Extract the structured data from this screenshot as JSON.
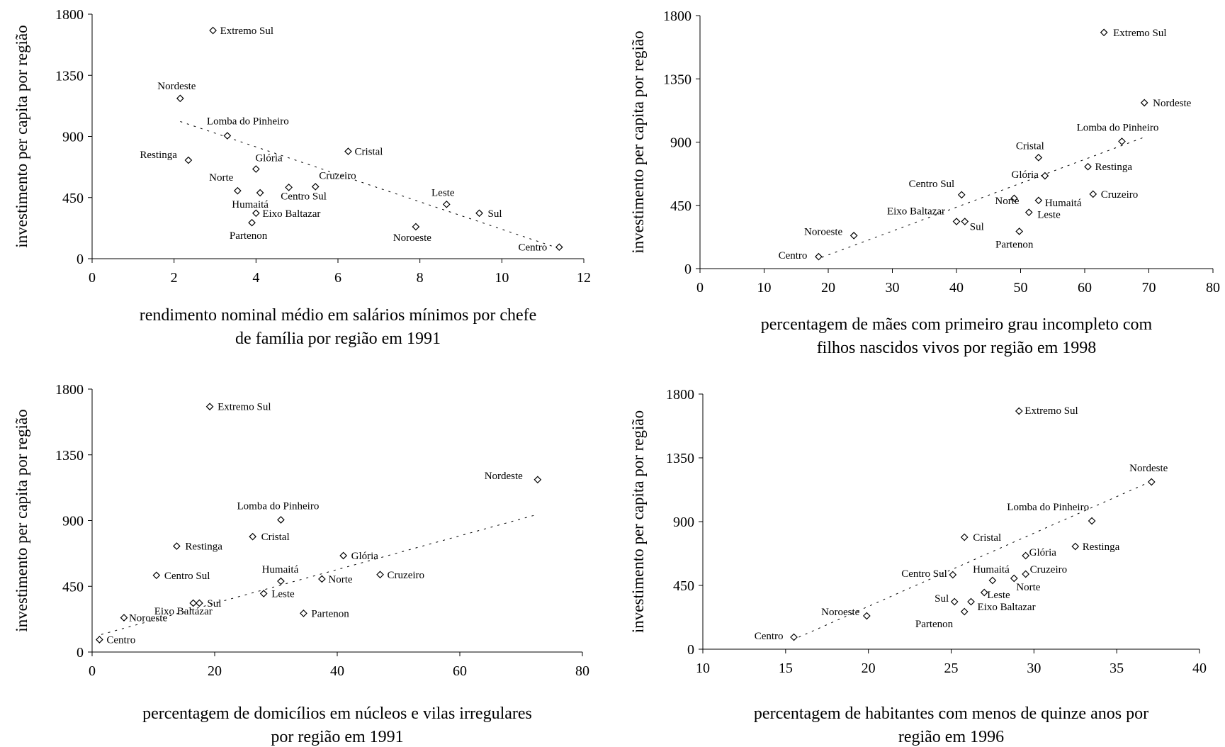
{
  "chart_data": [
    {
      "type": "scatter",
      "xlabel": [
        "rendimento nominal médio em salários mínimos por chefe",
        "de família por  região em 1991"
      ],
      "ylabel": "investimento per capita por região",
      "xlim": [
        0,
        12
      ],
      "xticks": [
        0,
        2,
        4,
        6,
        8,
        10,
        12
      ],
      "ylim": [
        0,
        1800
      ],
      "yticks": [
        0,
        450,
        900,
        1350,
        1800
      ],
      "trendline": [
        [
          2.15,
          1010
        ],
        [
          11.3,
          85
        ]
      ],
      "points": [
        {
          "name": "Extremo Sul",
          "x": 2.95,
          "y": 1680
        },
        {
          "name": "Nordeste",
          "x": 2.15,
          "y": 1180
        },
        {
          "name": "Lomba do Pinheiro",
          "x": 3.3,
          "y": 905
        },
        {
          "name": "Cristal",
          "x": 6.25,
          "y": 790
        },
        {
          "name": "Restinga",
          "x": 2.35,
          "y": 725
        },
        {
          "name": "Glória",
          "x": 4.0,
          "y": 660
        },
        {
          "name": "Norte",
          "x": 3.55,
          "y": 500
        },
        {
          "name": "Humaitá",
          "x": 4.1,
          "y": 485
        },
        {
          "name": "Centro Sul",
          "x": 4.8,
          "y": 525
        },
        {
          "name": "Cruzeiro",
          "x": 5.45,
          "y": 530
        },
        {
          "name": "Leste",
          "x": 8.65,
          "y": 400
        },
        {
          "name": "Sul",
          "x": 9.45,
          "y": 335
        },
        {
          "name": "Eixo Baltazar",
          "x": 4.0,
          "y": 335
        },
        {
          "name": "Partenon",
          "x": 3.9,
          "y": 265
        },
        {
          "name": "Noroeste",
          "x": 7.9,
          "y": 235
        },
        {
          "name": "Centro",
          "x": 11.4,
          "y": 85
        }
      ]
    },
    {
      "type": "scatter",
      "xlabel": [
        "percentagem de mães com primeiro grau incompleto com",
        "filhos nascidos vivos por região em 1998"
      ],
      "ylabel": "investimento per capita por região",
      "xlim": [
        0,
        80
      ],
      "xticks": [
        0,
        10,
        20,
        30,
        40,
        50,
        60,
        70,
        80
      ],
      "ylim": [
        0,
        1800
      ],
      "yticks": [
        0,
        450,
        900,
        1350,
        1800
      ],
      "trendline": [
        [
          19,
          80
        ],
        [
          69,
          930
        ]
      ],
      "points": [
        {
          "name": "Extremo Sul",
          "x": 63,
          "y": 1680
        },
        {
          "name": "Nordeste",
          "x": 69.3,
          "y": 1180
        },
        {
          "name": "Lomba do Pinheiro",
          "x": 65.8,
          "y": 905
        },
        {
          "name": "Cristal",
          "x": 52.8,
          "y": 790
        },
        {
          "name": "Restinga",
          "x": 60.5,
          "y": 725
        },
        {
          "name": "Glória",
          "x": 53.8,
          "y": 660
        },
        {
          "name": "Centro Sul",
          "x": 40.8,
          "y": 525
        },
        {
          "name": "Cruzeiro",
          "x": 61.3,
          "y": 530
        },
        {
          "name": "Norte",
          "x": 49,
          "y": 500
        },
        {
          "name": "Humaitá",
          "x": 52.8,
          "y": 485
        },
        {
          "name": "Eixo Baltazar",
          "x": 40,
          "y": 335
        },
        {
          "name": "Sul",
          "x": 41.3,
          "y": 335
        },
        {
          "name": "Leste",
          "x": 51.3,
          "y": 400
        },
        {
          "name": "Partenon",
          "x": 49.8,
          "y": 265
        },
        {
          "name": "Noroeste",
          "x": 24,
          "y": 235
        },
        {
          "name": "Centro",
          "x": 18.5,
          "y": 85
        }
      ]
    },
    {
      "type": "scatter",
      "xlabel": [
        "percentagem de domicílios em núcleos e vilas irregulares",
        "por região em 1991"
      ],
      "ylabel": "investimento per capita por região",
      "xlim": [
        0,
        80
      ],
      "xticks": [
        0,
        20,
        40,
        60,
        80
      ],
      "ylim": [
        0,
        1800
      ],
      "yticks": [
        0,
        450,
        900,
        1350,
        1800
      ],
      "trendline": [
        [
          1.5,
          120
        ],
        [
          72.5,
          940
        ]
      ],
      "points": [
        {
          "name": "Extremo Sul",
          "x": 19.2,
          "y": 1680
        },
        {
          "name": "Nordeste",
          "x": 72.7,
          "y": 1180
        },
        {
          "name": "Lomba do Pinheiro",
          "x": 30.8,
          "y": 905
        },
        {
          "name": "Cristal",
          "x": 26.2,
          "y": 790
        },
        {
          "name": "Restinga",
          "x": 13.8,
          "y": 725
        },
        {
          "name": "Glória",
          "x": 41,
          "y": 660
        },
        {
          "name": "Centro Sul",
          "x": 10.5,
          "y": 525
        },
        {
          "name": "Cruzeiro",
          "x": 47,
          "y": 530
        },
        {
          "name": "Humaitá",
          "x": 30.8,
          "y": 485
        },
        {
          "name": "Norte",
          "x": 37.5,
          "y": 500
        },
        {
          "name": "Leste",
          "x": 28,
          "y": 400
        },
        {
          "name": "Eixo Baltazar",
          "x": 16.5,
          "y": 335
        },
        {
          "name": "Sul",
          "x": 17.5,
          "y": 335
        },
        {
          "name": "Partenon",
          "x": 34.5,
          "y": 265
        },
        {
          "name": "Noroeste",
          "x": 5.2,
          "y": 235
        },
        {
          "name": "Centro",
          "x": 1.2,
          "y": 85
        }
      ]
    },
    {
      "type": "scatter",
      "xlabel": [
        "percentagem de habitantes com menos de quinze anos por",
        "região em 1996"
      ],
      "ylabel": "investimento per capita por região",
      "xlim": [
        10,
        40
      ],
      "xticks": [
        10,
        15,
        20,
        25,
        30,
        35,
        40
      ],
      "ylim": [
        0,
        1800
      ],
      "yticks": [
        0,
        450,
        900,
        1350,
        1800
      ],
      "trendline": [
        [
          15.8,
          85
        ],
        [
          37,
          1180
        ]
      ],
      "points": [
        {
          "name": "Extremo Sul",
          "x": 29.1,
          "y": 1680
        },
        {
          "name": "Nordeste",
          "x": 37.1,
          "y": 1180
        },
        {
          "name": "Lomba do Pinheiro",
          "x": 33.5,
          "y": 905
        },
        {
          "name": "Cristal",
          "x": 25.8,
          "y": 790
        },
        {
          "name": "Restinga",
          "x": 32.5,
          "y": 725
        },
        {
          "name": "Glória",
          "x": 29.5,
          "y": 660
        },
        {
          "name": "Centro Sul",
          "x": 25.1,
          "y": 525
        },
        {
          "name": "Humaitá",
          "x": 27.5,
          "y": 485
        },
        {
          "name": "Cruzeiro",
          "x": 29.5,
          "y": 530
        },
        {
          "name": "Norte",
          "x": 28.8,
          "y": 500
        },
        {
          "name": "Leste",
          "x": 27,
          "y": 400
        },
        {
          "name": "Sul",
          "x": 25.2,
          "y": 335
        },
        {
          "name": "Eixo Baltazar",
          "x": 26.2,
          "y": 335
        },
        {
          "name": "Partenon",
          "x": 25.8,
          "y": 265
        },
        {
          "name": "Noroeste",
          "x": 19.9,
          "y": 235
        },
        {
          "name": "Centro",
          "x": 15.5,
          "y": 85
        }
      ]
    }
  ]
}
